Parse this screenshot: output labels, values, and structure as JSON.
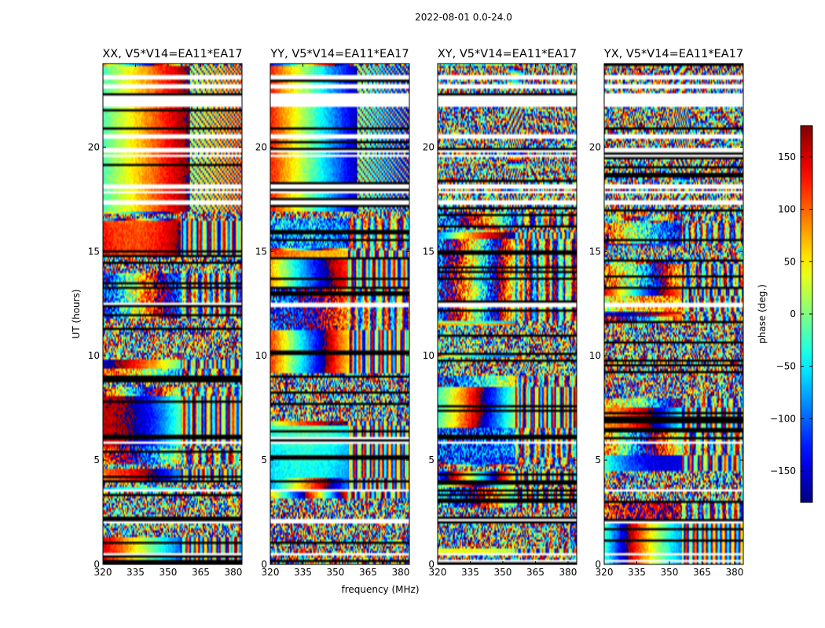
{
  "chart_data": {
    "type": "heatmap",
    "suptitle": "2022-08-01 0.0-24.0",
    "panels": [
      {
        "title": "XX, V5*V14=EA11*EA17",
        "pol": "XX"
      },
      {
        "title": "YY, V5*V14=EA11*EA17",
        "pol": "YY"
      },
      {
        "title": "XY, V5*V14=EA11*EA17",
        "pol": "XY"
      },
      {
        "title": "YX, V5*V14=EA11*EA17",
        "pol": "YX"
      }
    ],
    "xlabel": "frequency (MHz)",
    "ylabel": "UT (hours)",
    "xlim": [
      320,
      384
    ],
    "ylim": [
      0,
      24
    ],
    "xticks": [
      320,
      335,
      350,
      365,
      380
    ],
    "yticks": [
      0,
      5,
      10,
      15,
      20
    ],
    "colorbar": {
      "label": "phase (deg.)",
      "range": [
        -180,
        180
      ],
      "ticks": [
        -150,
        -100,
        -50,
        0,
        50,
        100,
        150
      ],
      "tick_labels": [
        "−150",
        "−100",
        "−50",
        "0",
        "50",
        "100",
        "150"
      ],
      "colormap": "jet"
    },
    "flagged_hours": [
      [
        0.15,
        0.2
      ],
      [
        0.45,
        0.5
      ],
      [
        2.0,
        2.08
      ],
      [
        3.5,
        3.55
      ],
      [
        5.8,
        5.85
      ],
      [
        6.0,
        6.1
      ],
      [
        12.4,
        12.45
      ],
      [
        17.3,
        17.4
      ],
      [
        17.8,
        17.85
      ],
      [
        18.1,
        18.15
      ],
      [
        19.55,
        19.62
      ],
      [
        19.85,
        19.9
      ],
      [
        20.5,
        20.6
      ],
      [
        21.95,
        22.5
      ],
      [
        22.4,
        22.5
      ],
      [
        22.9,
        22.95
      ],
      [
        23.3,
        23.35
      ]
    ]
  }
}
